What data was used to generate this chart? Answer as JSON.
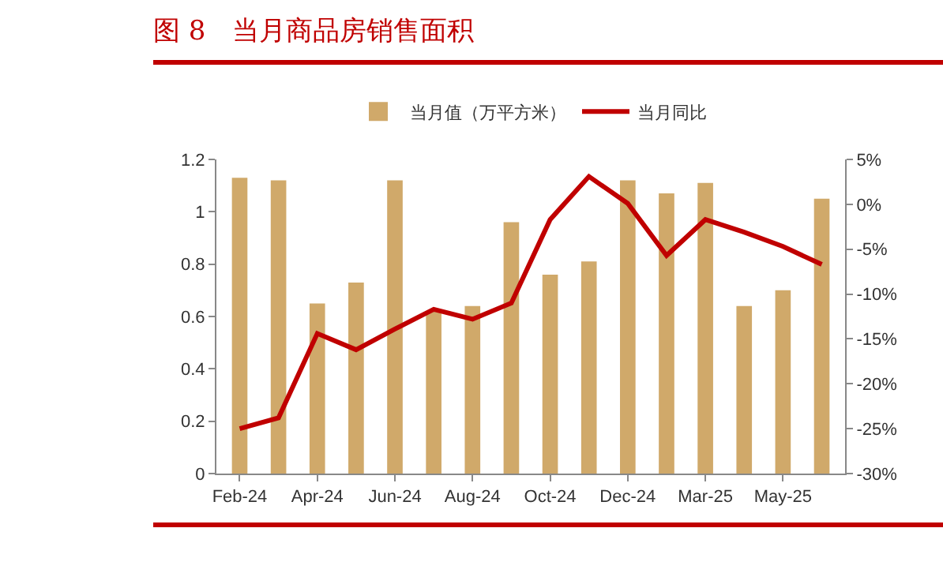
{
  "chart_data": {
    "type": "bar",
    "title": "图 8　当月商品房销售面积",
    "categories": [
      "Feb-24",
      null,
      "Apr-24",
      null,
      "Jun-24",
      null,
      "Aug-24",
      null,
      "Oct-24",
      null,
      "Dec-24",
      null,
      "Mar-25",
      null,
      "May-25",
      null
    ],
    "series": [
      {
        "name": "当月值（万平方米）",
        "color": "#d0a96a",
        "values": [
          1.13,
          1.12,
          0.65,
          0.73,
          1.12,
          0.62,
          0.64,
          0.96,
          0.76,
          0.81,
          1.12,
          1.07,
          1.11,
          0.64,
          0.7,
          1.05
        ]
      },
      {
        "name": "当月同比",
        "type": "line",
        "axis": "y2",
        "color": "#c00000",
        "values": [
          -25.0,
          -23.8,
          -14.4,
          -16.2,
          -13.9,
          -11.7,
          -12.8,
          -11.0,
          -1.7,
          3.1,
          0.1,
          -5.7,
          -1.7,
          -3.1,
          -4.7,
          -6.7
        ]
      }
    ],
    "ylim": [
      0,
      1.2
    ],
    "yticks": [
      0,
      0.2,
      0.4,
      0.6,
      0.8,
      1,
      1.2
    ],
    "y2lim": [
      -30,
      5
    ],
    "y2ticks": [
      {
        "value": 5,
        "label": "5%"
      },
      {
        "value": 0,
        "label": "0%"
      },
      {
        "value": -5,
        "label": "-5%"
      },
      {
        "value": -10,
        "label": "-10%"
      },
      {
        "value": -15,
        "label": "-15%"
      },
      {
        "value": -20,
        "label": "-20%"
      },
      {
        "value": -25,
        "label": "-25%"
      },
      {
        "value": -30,
        "label": "-30%"
      }
    ],
    "grid": false,
    "legend": "top"
  }
}
